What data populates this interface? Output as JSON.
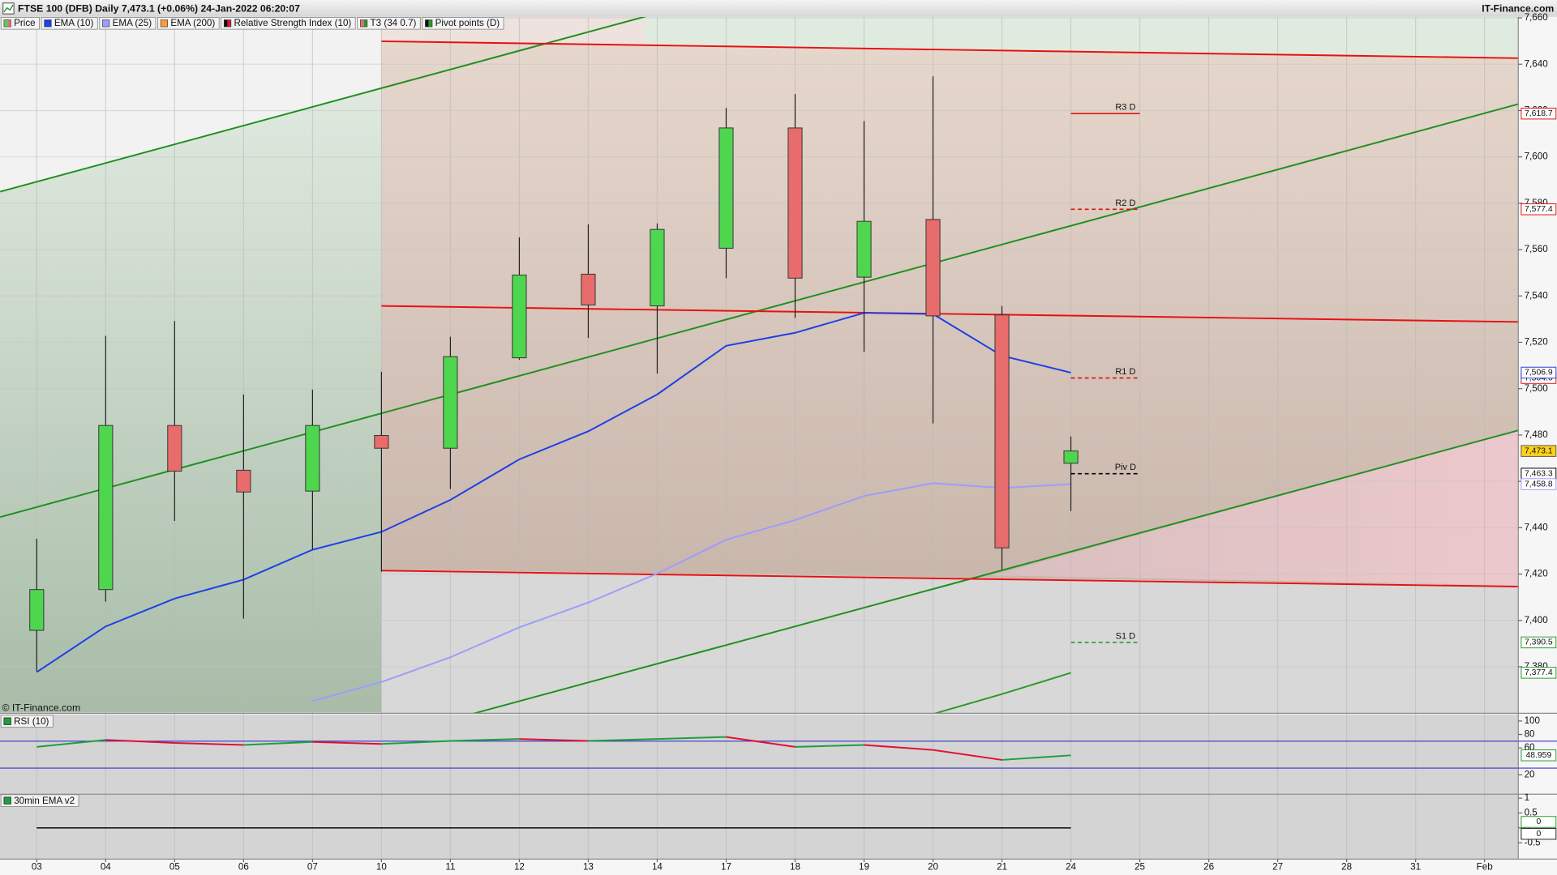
{
  "header": {
    "title": "FTSE 100 (DFB) Daily 7,473.1 (+0.06%) 24-Jan-2022 06:20:07",
    "site": "IT-Finance.com",
    "watermark": "© IT-Finance.com"
  },
  "chart_data": [
    {
      "type": "candlestick",
      "name": "Price",
      "up_color": "#4fd64f",
      "down_color": "#e86c6c",
      "categories": [
        "03",
        "04",
        "05",
        "06",
        "07",
        "10",
        "11",
        "12",
        "13",
        "14",
        "17",
        "18",
        "19",
        "20",
        "21",
        "24",
        "25",
        "26",
        "27",
        "28",
        "31",
        "Feb"
      ],
      "open": [
        7395.7,
        7413.3,
        7484.1,
        7464.8,
        7455.8,
        7479.8,
        7474.3,
        7513.3,
        7549.4,
        7535.7,
        7560.6,
        7612.5,
        7548.1,
        7573.0,
        7531.8,
        7467.8,
        null,
        null,
        null,
        null,
        null,
        null
      ],
      "high": [
        7435.2,
        7522.8,
        7529.2,
        7497.5,
        7499.6,
        7507.3,
        7522.4,
        7565.3,
        7570.9,
        7571.3,
        7621.1,
        7627.1,
        7615.5,
        7634.8,
        7535.7,
        7479.4,
        null,
        null,
        null,
        null,
        null,
        null
      ],
      "low": [
        7378.0,
        7408.1,
        7442.9,
        7400.8,
        7430.5,
        7421.0,
        7456.7,
        7512.5,
        7521.9,
        7506.5,
        7547.7,
        7530.5,
        7515.9,
        7485.0,
        7421.9,
        7447.2,
        null,
        null,
        null,
        null,
        null,
        null
      ],
      "close": [
        7413.3,
        7484.1,
        7464.4,
        7455.4,
        7484.1,
        7474.3,
        7513.8,
        7549.0,
        7536.1,
        7568.7,
        7612.5,
        7547.7,
        7572.2,
        7531.4,
        7431.3,
        7473.1,
        null,
        null,
        null,
        null,
        null,
        null
      ],
      "value_labels": [
        null,
        null,
        null,
        null,
        null,
        null,
        null,
        null,
        null,
        null,
        null,
        null,
        null,
        null,
        null,
        "7,473.1",
        null,
        null,
        null,
        null,
        null,
        null
      ],
      "ylim": [
        7360,
        7660
      ],
      "yticks": [
        {
          "value": 7380,
          "label": "7,380"
        },
        {
          "value": 7400,
          "label": "7,400"
        },
        {
          "value": 7420,
          "label": "7,420"
        },
        {
          "value": 7440,
          "label": "7,440"
        },
        {
          "value": 7460,
          "label": "7,460"
        },
        {
          "value": 7480,
          "label": "7,480"
        },
        {
          "value": 7500,
          "label": "7,500"
        },
        {
          "value": 7520,
          "label": "7,520"
        },
        {
          "value": 7540,
          "label": "7,540"
        },
        {
          "value": 7560,
          "label": "7,560"
        },
        {
          "value": 7580,
          "label": "7,580"
        },
        {
          "value": 7600,
          "label": "7,600"
        },
        {
          "value": 7620,
          "label": "7,620"
        },
        {
          "value": 7640,
          "label": "7,640"
        },
        {
          "value": 7660,
          "label": "7,660"
        }
      ],
      "grid": true,
      "series": [
        {
          "name": "EMA (10)",
          "color": "#1d3fe6",
          "values": [
            7377.7,
            7397.4,
            7409.4,
            7417.6,
            7430.5,
            7438.2,
            7452.0,
            7469.5,
            7481.6,
            7497.5,
            7518.5,
            7524.1,
            7532.7,
            7532.2,
            7514.2,
            7506.9,
            null,
            null,
            null,
            null,
            null,
            null
          ],
          "value_labels": [
            null,
            null,
            null,
            null,
            null,
            null,
            null,
            null,
            null,
            null,
            null,
            null,
            null,
            null,
            null,
            "7,506.9",
            null,
            null,
            null,
            null,
            null,
            null
          ]
        },
        {
          "name": "EMA (25)",
          "color": "#9c9cff",
          "values": [
            null,
            null,
            null,
            null,
            7365.2,
            7373.4,
            7384.1,
            7397.0,
            7407.7,
            7420.2,
            7434.8,
            7443.3,
            7453.7,
            7459.2,
            7457.1,
            7458.8,
            null,
            null,
            null,
            null,
            null,
            null
          ],
          "value_labels": [
            null,
            null,
            null,
            null,
            null,
            null,
            null,
            null,
            null,
            null,
            null,
            null,
            null,
            null,
            null,
            "7,458.8",
            null,
            null,
            null,
            null,
            null,
            null
          ]
        },
        {
          "name": "EMA (200)",
          "color": "#ff9a3c",
          "values": [
            null,
            null,
            null,
            null,
            null,
            null,
            null,
            null,
            null,
            null,
            null,
            null,
            null,
            null,
            null,
            null,
            null,
            null,
            null,
            null,
            null,
            null
          ]
        },
        {
          "name": "T3 (34 0.7)",
          "color": "#2a9a2a",
          "values": [
            null,
            null,
            null,
            null,
            null,
            null,
            null,
            null,
            null,
            null,
            null,
            null,
            null,
            7359.6,
            7368.2,
            7377.4,
            null,
            null,
            null,
            null,
            null,
            null
          ],
          "value_labels": [
            null,
            null,
            null,
            null,
            null,
            null,
            null,
            null,
            null,
            null,
            null,
            null,
            null,
            null,
            null,
            "7,377.4",
            null,
            null,
            null,
            null,
            null,
            null
          ]
        }
      ],
      "pivots": {
        "name": "Pivot points (D)",
        "levels": [
          {
            "name": "R3 D",
            "value": 7618.7,
            "label": "7,618.7",
            "color": "#e01010",
            "dashed": false
          },
          {
            "name": "R2 D",
            "value": 7577.4,
            "label": "7,577.4",
            "color": "#e01010",
            "dashed": true
          },
          {
            "name": "R1 D",
            "value": 7504.6,
            "label": "7,504.6",
            "color": "#e01010",
            "dashed": true
          },
          {
            "name": "Piv D",
            "value": 7463.3,
            "label": "7,463.3",
            "color": "#000000",
            "dashed": true
          },
          {
            "name": "S1 D",
            "value": 7390.5,
            "label": "7,390.5",
            "color": "#2a9a2a",
            "dashed": true
          }
        ]
      },
      "trend_lines": [
        {
          "color": "#1f8f1f",
          "points": [
            [
              -0.53,
              7585.0
            ],
            [
              8.83,
              7660.6
            ]
          ]
        },
        {
          "color": "#1f8f1f",
          "points": [
            [
              -0.53,
              7444.6
            ],
            [
              21.49,
              7622.8
            ]
          ]
        },
        {
          "color": "#1f8f1f",
          "points": [
            [
              6.31,
              7359.6
            ],
            [
              21.49,
              7482.0
            ]
          ]
        },
        {
          "color": "#e81010",
          "points": [
            [
              5,
              7649.9
            ],
            [
              21.49,
              7642.6
            ]
          ]
        },
        {
          "color": "#e81010",
          "points": [
            [
              5,
              7535.7
            ],
            [
              21.49,
              7528.8
            ]
          ]
        },
        {
          "color": "#e81010",
          "points": [
            [
              5,
              7421.5
            ],
            [
              21.49,
              7414.6
            ]
          ]
        }
      ]
    },
    {
      "type": "line",
      "title": "RSI (10)",
      "ylim": [
        -8,
        110
      ],
      "yticks": [
        100,
        80,
        60,
        20
      ],
      "levels": [
        70,
        30
      ],
      "level_color": "#3535c8",
      "series": [
        {
          "name": "Relative Strength Index (10)",
          "up_color": "#1e9e3e",
          "down_color": "#e0103a",
          "values": [
            61.5,
            71.9,
            67.4,
            64.4,
            68.9,
            65.9,
            70.4,
            73.3,
            70.4,
            73.3,
            76.3,
            61.5,
            64.4,
            57.0,
            42.2,
            48.959,
            null,
            null,
            null,
            null,
            null,
            null
          ]
        }
      ]
    },
    {
      "type": "line",
      "title": "30min EMA v2",
      "ylim": [
        -1.05,
        1.15
      ],
      "yticks": [
        1,
        0.5,
        0,
        -0.5
      ],
      "series": [
        {
          "color": "#2a9a2a",
          "values": [
            0,
            0,
            0,
            0,
            0,
            0,
            0,
            0,
            0,
            0,
            0,
            0,
            0,
            0,
            0,
            0,
            null,
            null,
            null,
            null,
            null,
            null
          ]
        },
        {
          "color": "#222222",
          "values": [
            0,
            0,
            0,
            0,
            0,
            0,
            0,
            0,
            0,
            0,
            0,
            0,
            0,
            0,
            0,
            0,
            null,
            null,
            null,
            null,
            null,
            null
          ]
        }
      ]
    }
  ]
}
